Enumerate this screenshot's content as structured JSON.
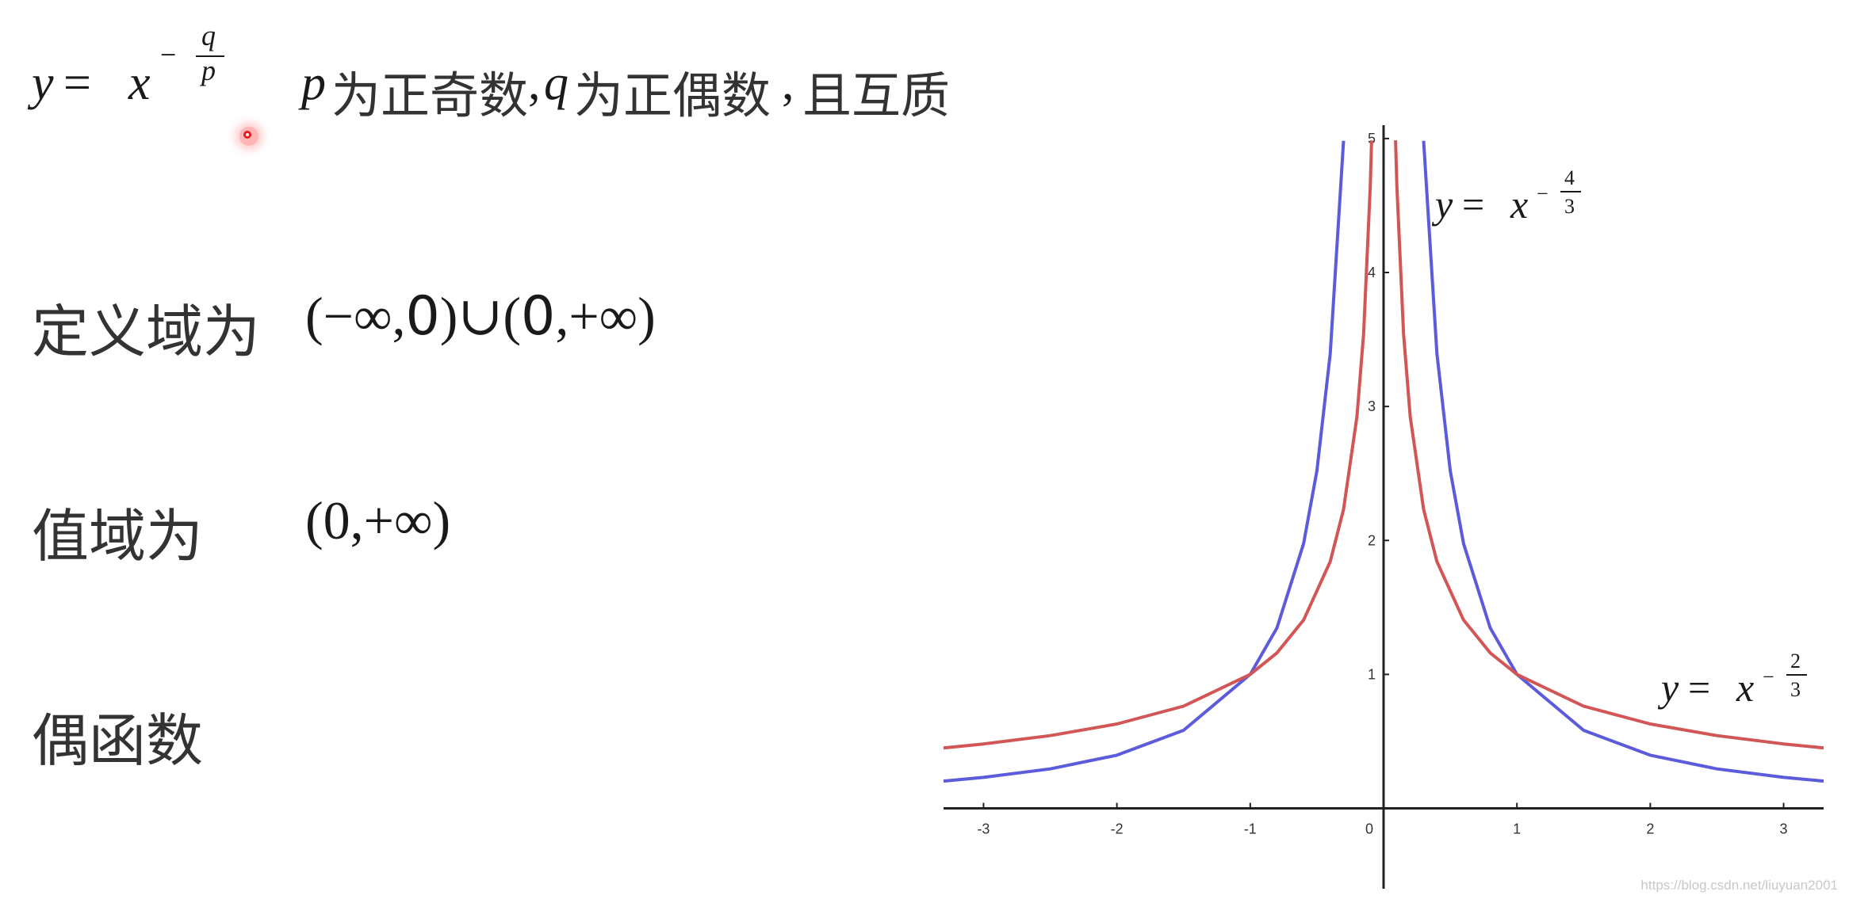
{
  "formula": {
    "y": "y",
    "eq": "=",
    "x": "x",
    "minus": "−",
    "num": "q",
    "den": "p",
    "p_var": "p",
    "text1": "为正奇数",
    "comma1": ",",
    "q_var": "q",
    "text2": "为正偶数",
    "comma2": ",",
    "text3": "且互质"
  },
  "domain_row": {
    "label": "定义域为",
    "open1": "(−∞,",
    "zero1": "0",
    "close1": ")",
    "union": "∪",
    "open2": "(",
    "zero2": "0",
    "close2": ",+∞)"
  },
  "range_row": {
    "label": "值域为",
    "value": "(0,+∞)"
  },
  "parity_row": {
    "label": "偶函数"
  },
  "chart_data": {
    "type": "line",
    "xlim": [
      -3.3,
      3.3
    ],
    "ylim": [
      -0.6,
      5.1
    ],
    "grid": false,
    "x_ticks": [
      -3,
      -2,
      -1,
      0,
      1,
      2,
      3
    ],
    "x_tick_labels": [
      "-3",
      "-2",
      "-1",
      "0",
      "1",
      "2",
      "3"
    ],
    "y_ticks": [
      1,
      2,
      3,
      4,
      5
    ],
    "y_tick_labels": [
      "1",
      "2",
      "3",
      "4",
      "5"
    ],
    "series": [
      {
        "color": "#5b5bdc",
        "exponent": [
          -4,
          3
        ],
        "label": {
          "y": "y",
          "eq": "=",
          "x": "x",
          "minus": "−",
          "num": "4",
          "den": "3"
        },
        "x": [
          -3.3,
          -3,
          -2.5,
          -2,
          -1.5,
          -1,
          -0.8,
          -0.6,
          -0.5,
          -0.4,
          -0.3,
          0.3,
          0.4,
          0.5,
          0.6,
          0.8,
          1,
          1.5,
          2,
          2.5,
          3,
          3.3
        ],
        "y": [
          0.2035,
          0.2311,
          0.2947,
          0.3969,
          0.5824,
          1,
          1.3465,
          1.9757,
          2.5198,
          3.3929,
          4.9828,
          4.9828,
          3.3929,
          2.5198,
          1.9757,
          1.3465,
          1,
          0.5824,
          0.3969,
          0.2947,
          0.2311,
          0.2035
        ]
      },
      {
        "color": "#d25656",
        "exponent": [
          -2,
          3
        ],
        "label": {
          "y": "y",
          "eq": "=",
          "x": "x",
          "minus": "−",
          "num": "2",
          "den": "3"
        },
        "x": [
          -3.3,
          -3,
          -2.5,
          -2,
          -1.5,
          -1,
          -0.8,
          -0.6,
          -0.4,
          -0.3,
          -0.2,
          -0.15,
          -0.1,
          -0.09,
          0.09,
          0.1,
          0.15,
          0.2,
          0.3,
          0.4,
          0.6,
          0.8,
          1,
          1.5,
          2,
          2.5,
          3,
          3.3
        ],
        "y": [
          0.4512,
          0.4807,
          0.5429,
          0.63,
          0.7631,
          1,
          1.1604,
          1.4057,
          1.842,
          2.2314,
          2.924,
          3.5422,
          4.6416,
          4.9866,
          4.9866,
          4.6416,
          3.5422,
          2.924,
          2.2314,
          1.842,
          1.4057,
          1.1604,
          1,
          0.7631,
          0.63,
          0.5429,
          0.4807,
          0.4512
        ]
      }
    ]
  },
  "watermark": "https://blog.csdn.net/liuyuan2001"
}
